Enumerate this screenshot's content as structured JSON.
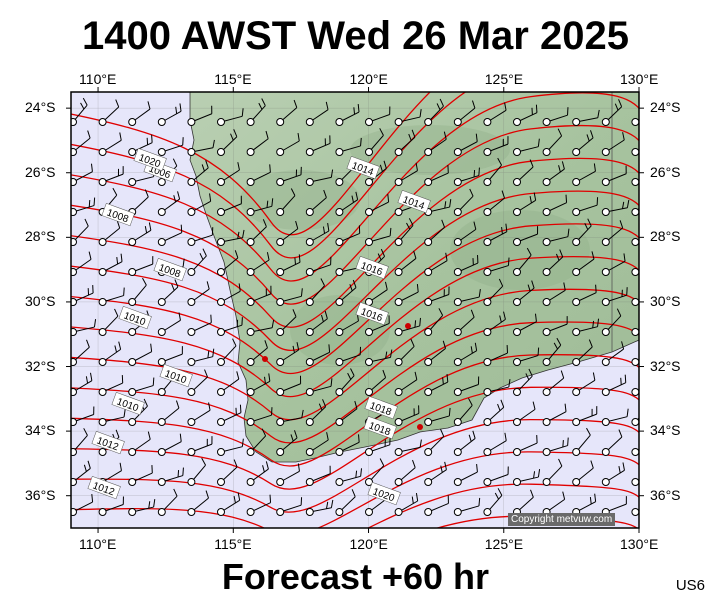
{
  "header": {
    "title": "1400 AWST Wed 26 Mar 2025"
  },
  "footer": {
    "forecast": "Forecast +60 hr",
    "code": "US6"
  },
  "axes": {
    "lon_labels": [
      "110°E",
      "115°E",
      "120°E",
      "125°E",
      "130°E"
    ],
    "lon_values": [
      110,
      115,
      120,
      125,
      130
    ],
    "lat_labels": [
      "24°S",
      "26°S",
      "28°S",
      "30°S",
      "32°S",
      "34°S",
      "36°S"
    ],
    "lat_values": [
      -24,
      -26,
      -28,
      -30,
      -32,
      -34,
      -36
    ],
    "lon_range": [
      109,
      130
    ],
    "lat_range": [
      -23.5,
      -37
    ]
  },
  "isobars": {
    "labels": [
      "1006",
      "1008",
      "1008",
      "1010",
      "1010",
      "1010",
      "1012",
      "1012",
      "1014",
      "1014",
      "1016",
      "1016",
      "1018",
      "1018",
      "1020",
      "1020"
    ],
    "color": "#e00000"
  },
  "colors": {
    "ocean": "#e6e6fa",
    "land": "#a8c4a0",
    "isobar": "#e00000",
    "station": "#cc0000"
  },
  "copyright": "Copyright metvuw.com"
}
